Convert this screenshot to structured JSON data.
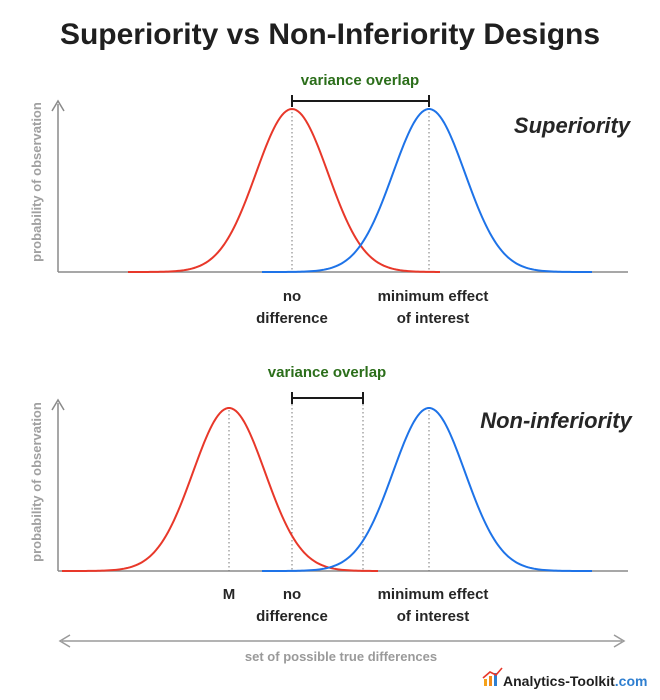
{
  "title": "Superiority vs Non-Inferiority Designs",
  "colors": {
    "control": "#e8382a",
    "treatment": "#1e73e8",
    "overlap": "#2b6e1a",
    "axis": "#8a8a8a",
    "arrow": "#9a9a9a"
  },
  "panels": [
    {
      "design_label": "Superiority",
      "y_axis_label": "probability of observation",
      "overlap_label": "variance overlap",
      "markers": [
        {
          "lines": [
            "no",
            "difference"
          ]
        },
        {
          "lines": [
            "minimum effect",
            "of interest"
          ]
        }
      ]
    },
    {
      "design_label": "Non-inferiority",
      "y_axis_label": "probability of observation",
      "overlap_label": "variance overlap",
      "markers": [
        {
          "lines": [
            "M"
          ]
        },
        {
          "lines": [
            "no",
            "difference"
          ]
        },
        {
          "lines": [
            "minimum effect",
            "of interest"
          ]
        }
      ]
    }
  ],
  "footer": {
    "range_label": "set of possible true differences",
    "brand_name": "Analytics-Toolkit",
    "brand_domain": ".com"
  }
}
